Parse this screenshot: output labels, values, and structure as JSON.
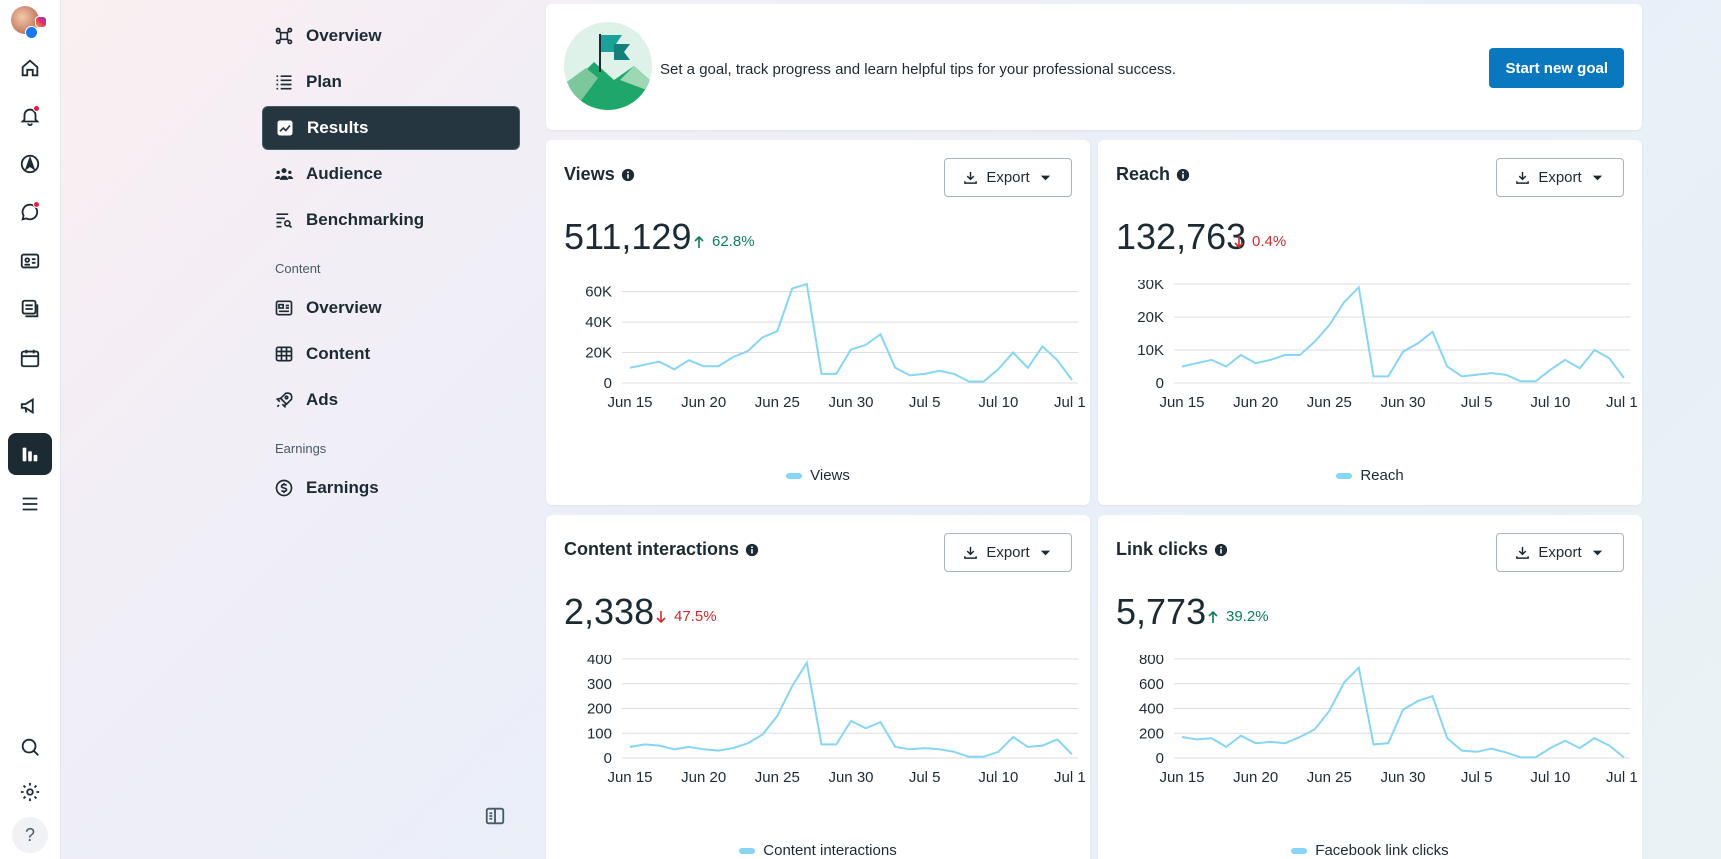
{
  "subnav": {
    "items": [
      {
        "label": "Overview",
        "icon": "overview-icon"
      },
      {
        "label": "Plan",
        "icon": "plan-icon"
      },
      {
        "label": "Results",
        "icon": "results-icon",
        "active": true
      },
      {
        "label": "Audience",
        "icon": "audience-icon"
      },
      {
        "label": "Benchmarking",
        "icon": "benchmarking-icon"
      }
    ],
    "content_section": "Content",
    "content_items": [
      {
        "label": "Overview",
        "icon": "content-overview-icon"
      },
      {
        "label": "Content",
        "icon": "content-table-icon"
      },
      {
        "label": "Ads",
        "icon": "ads-icon"
      }
    ],
    "earnings_section": "Earnings",
    "earnings_items": [
      {
        "label": "Earnings",
        "icon": "earnings-icon"
      }
    ]
  },
  "goal": {
    "text": "Set a goal, track progress and learn helpful tips for your professional success.",
    "button": "Start new goal"
  },
  "export_label": "Export",
  "colors": {
    "accent": "#0a78be",
    "line": "#87d5f4",
    "up": "#0a7f55",
    "down": "#d02c2c",
    "active_nav": "#263641"
  },
  "cards": [
    {
      "title": "Views",
      "value": "511,129",
      "delta": "62.8%",
      "direction": "up",
      "legend": "Views"
    },
    {
      "title": "Reach",
      "value": "132,763",
      "delta": "0.4%",
      "direction": "down",
      "legend": "Reach"
    },
    {
      "title": "Content interactions",
      "value": "2,338",
      "delta": "47.5%",
      "direction": "down",
      "legend": "Content interactions"
    },
    {
      "title": "Link clicks",
      "value": "5,773",
      "delta": "39.2%",
      "direction": "up",
      "legend": "Facebook link clicks"
    }
  ],
  "chart_data": [
    {
      "type": "line",
      "x_ticks": [
        "Jun 15",
        "Jun 20",
        "Jun 25",
        "Jun 30",
        "Jul 5",
        "Jul 10",
        "Jul 1"
      ],
      "y_ticks": [
        "0",
        "20K",
        "40K",
        "60K"
      ],
      "ylim": [
        0,
        65000
      ],
      "series": [
        {
          "name": "Views",
          "values": [
            10000,
            12000,
            14000,
            9000,
            15000,
            11000,
            11000,
            17000,
            21000,
            30000,
            34000,
            62000,
            65000,
            6000,
            6000,
            22000,
            25000,
            32000,
            10000,
            5000,
            6000,
            8000,
            6000,
            1000,
            1000,
            9000,
            20000,
            10000,
            24000,
            15000,
            2000
          ]
        }
      ],
      "grid": true
    },
    {
      "type": "line",
      "x_ticks": [
        "Jun 15",
        "Jun 20",
        "Jun 25",
        "Jun 30",
        "Jul 5",
        "Jul 10",
        "Jul 1"
      ],
      "y_ticks": [
        "0",
        "10K",
        "20K",
        "30K"
      ],
      "ylim": [
        0,
        30000
      ],
      "series": [
        {
          "name": "Reach",
          "values": [
            5000,
            6000,
            7000,
            5000,
            8500,
            6000,
            7000,
            8500,
            8500,
            12500,
            17500,
            24500,
            29000,
            2000,
            2000,
            9500,
            12000,
            15500,
            5000,
            2000,
            2500,
            3000,
            2500,
            500,
            500,
            4000,
            7000,
            4500,
            10000,
            7500,
            1500
          ]
        }
      ],
      "grid": true
    },
    {
      "type": "line",
      "x_ticks": [
        "Jun 15",
        "Jun 20",
        "Jun 25",
        "Jun 30",
        "Jul 5",
        "Jul 10",
        "Jul 1"
      ],
      "y_ticks": [
        "0",
        "100",
        "200",
        "300",
        "400"
      ],
      "ylim": [
        0,
        400
      ],
      "series": [
        {
          "name": "Content interactions",
          "values": [
            45,
            55,
            50,
            35,
            45,
            35,
            30,
            40,
            60,
            95,
            170,
            290,
            385,
            55,
            55,
            150,
            120,
            145,
            45,
            35,
            40,
            35,
            25,
            5,
            5,
            25,
            85,
            45,
            50,
            75,
            15
          ]
        }
      ],
      "grid": true
    },
    {
      "type": "line",
      "x_ticks": [
        "Jun 15",
        "Jun 20",
        "Jun 25",
        "Jun 30",
        "Jul 5",
        "Jul 10",
        "Jul 1"
      ],
      "y_ticks": [
        "0",
        "200",
        "400",
        "600",
        "800"
      ],
      "ylim": [
        0,
        800
      ],
      "series": [
        {
          "name": "Facebook link clicks",
          "values": [
            170,
            150,
            160,
            90,
            180,
            120,
            130,
            120,
            170,
            230,
            380,
            610,
            730,
            110,
            120,
            390,
            460,
            500,
            160,
            60,
            50,
            75,
            45,
            5,
            5,
            80,
            140,
            80,
            160,
            100,
            5
          ]
        }
      ],
      "grid": true
    }
  ]
}
